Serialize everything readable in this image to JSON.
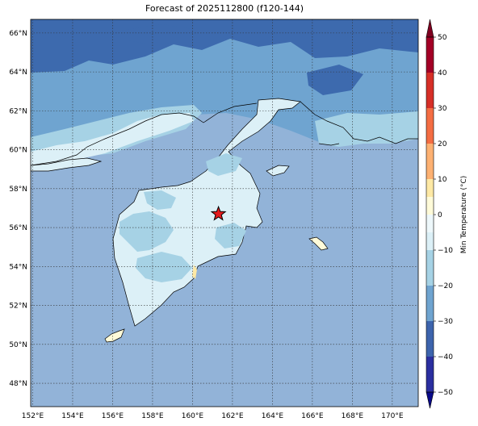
{
  "title": "Forecast of 2025112800 (f120-144)",
  "map": {
    "lat_labels": [
      "66°N",
      "64°N",
      "62°N",
      "60°N",
      "58°N",
      "56°N",
      "54°N",
      "52°N",
      "50°N",
      "48°N"
    ],
    "lon_labels": [
      "152°E",
      "154°E",
      "156°E",
      "158°E",
      "160°E",
      "162°E",
      "164°E",
      "166°E",
      "168°E",
      "170°E"
    ],
    "lat_values": [
      66,
      64,
      62,
      60,
      58,
      56,
      54,
      52,
      50,
      48
    ],
    "lon_values": [
      152,
      154,
      156,
      158,
      160,
      162,
      164,
      166,
      168,
      170
    ],
    "extent": {
      "lon_min": 151.9,
      "lon_max": 171.3,
      "lat_min": 46.8,
      "lat_max": 66.7
    },
    "marker": {
      "lon": 161.3,
      "lat": 56.7,
      "symbol": "star-icon",
      "color": "#e41a1c"
    },
    "ocean_color": "#92b3d8"
  },
  "colorbar": {
    "label": "Min Temperature (°C)",
    "tick_labels": [
      "50",
      "40",
      "30",
      "20",
      "10",
      "0",
      "−10",
      "−20",
      "−30",
      "−40",
      "−50"
    ],
    "levels": [
      -50,
      -40,
      -30,
      -20,
      -10,
      -5,
      0,
      5,
      10,
      20,
      30,
      40,
      50
    ],
    "colors": [
      "#2b2fa0",
      "#3d64ad",
      "#6fa4d0",
      "#a6d2e5",
      "#dcf0f7",
      "#eef8fb",
      "#fffbd9",
      "#fee9a5",
      "#fdb172",
      "#f46d43",
      "#d62f27",
      "#a30026"
    ],
    "extend_low_color": "#0a0a8a",
    "extend_high_color": "#7f0020"
  }
}
